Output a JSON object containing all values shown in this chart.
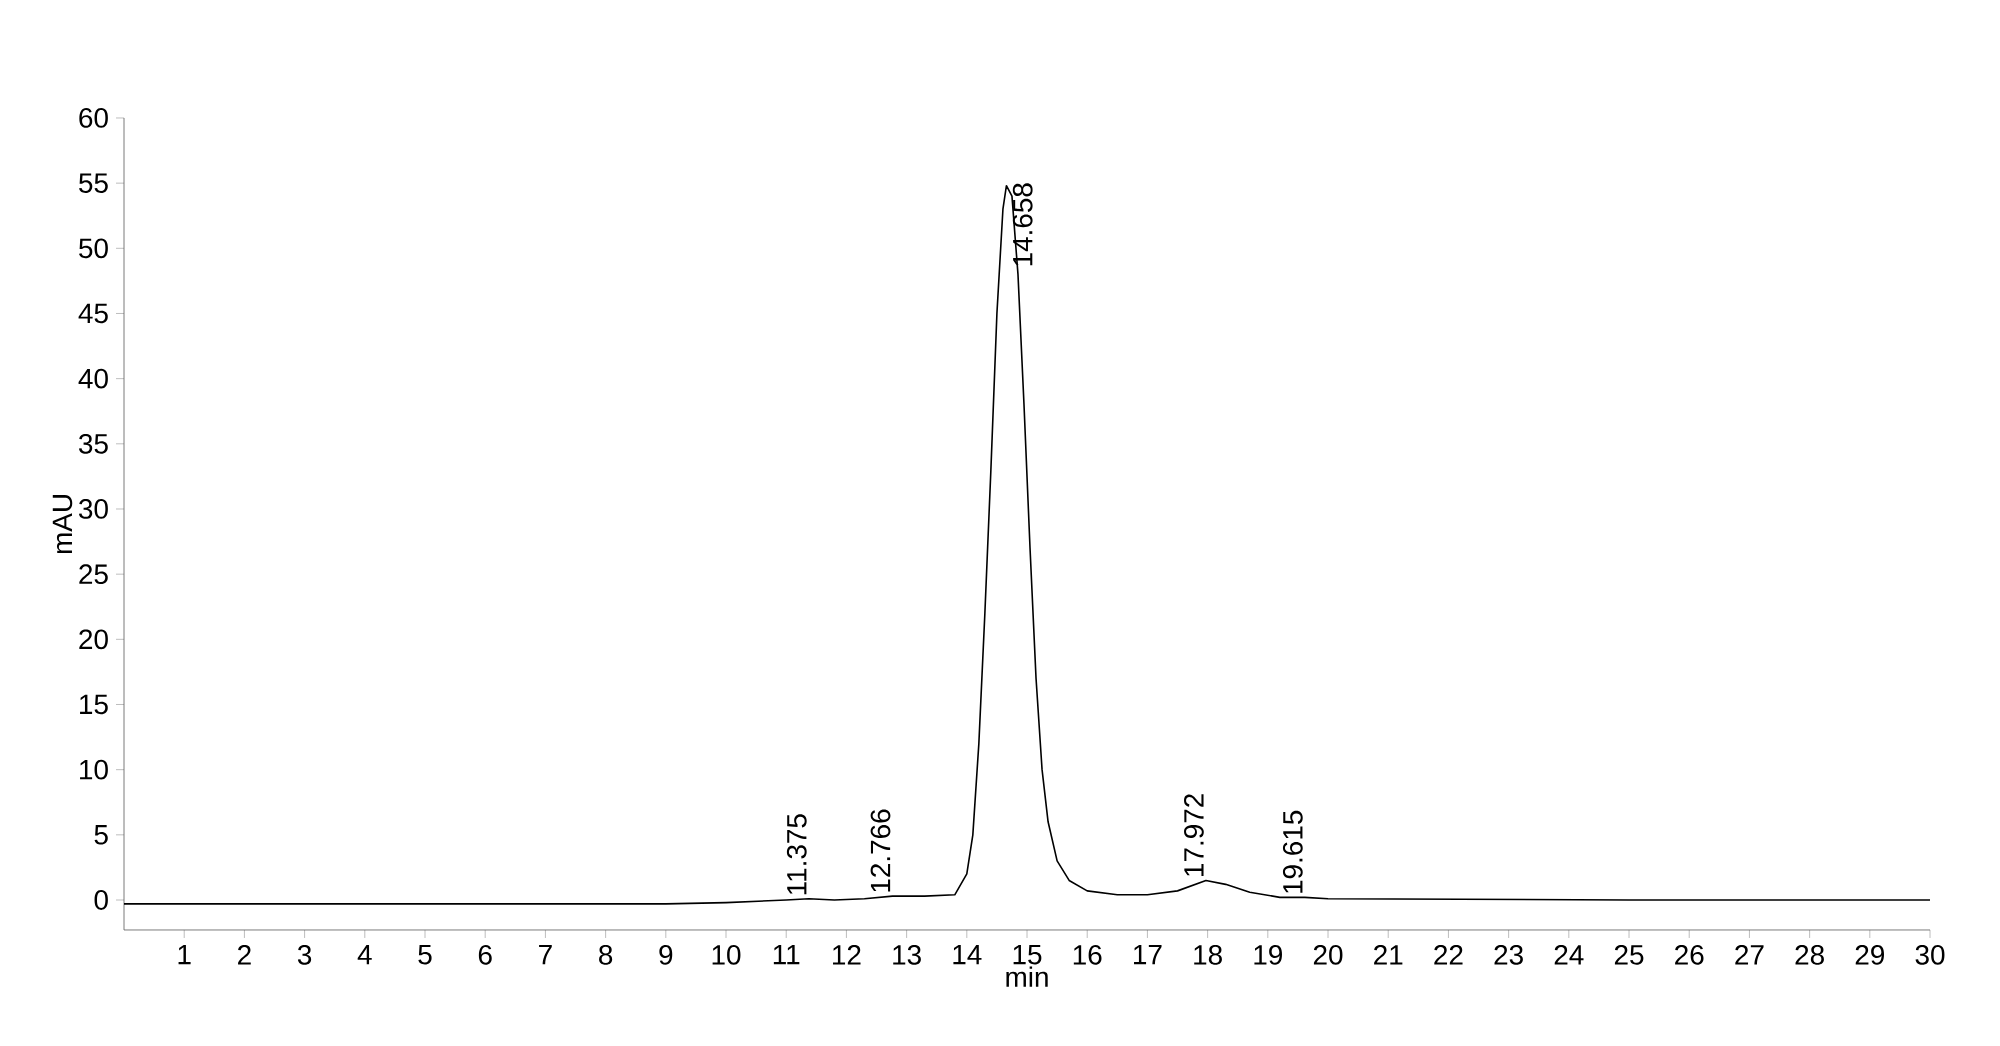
{
  "chart_data": {
    "type": "line",
    "xlabel": "min",
    "ylabel": "mAU",
    "x": [
      0,
      5,
      9,
      10,
      10.5,
      11,
      11.375,
      11.8,
      12.3,
      12.766,
      13.3,
      13.8,
      14.0,
      14.1,
      14.2,
      14.3,
      14.4,
      14.5,
      14.6,
      14.658,
      14.75,
      14.85,
      14.95,
      15.05,
      15.15,
      15.25,
      15.35,
      15.5,
      15.7,
      16.0,
      16.5,
      17.0,
      17.5,
      17.972,
      18.3,
      18.7,
      19.2,
      19.615,
      20,
      25,
      30
    ],
    "series": [
      {
        "color": "#000000",
        "values": [
          -0.3,
          -0.3,
          -0.3,
          -0.2,
          -0.1,
          0,
          0.1,
          0,
          0.1,
          0.3,
          0.3,
          0.4,
          2,
          5,
          12,
          22,
          33,
          45,
          53,
          54.8,
          54,
          48,
          38,
          27,
          17,
          10,
          6,
          3,
          1.5,
          0.7,
          0.4,
          0.4,
          0.7,
          1.5,
          1.2,
          0.6,
          0.2,
          0.2,
          0.1,
          0,
          0
        ]
      }
    ],
    "xlim": [
      0,
      30
    ],
    "ylim": [
      -2.3,
      60
    ],
    "xticks": [
      1,
      2,
      3,
      4,
      5,
      6,
      7,
      8,
      9,
      10,
      11,
      12,
      13,
      14,
      15,
      16,
      17,
      18,
      19,
      20,
      21,
      22,
      23,
      24,
      25,
      26,
      27,
      28,
      29,
      30
    ],
    "yticks": [
      0,
      5,
      10,
      15,
      20,
      25,
      30,
      35,
      40,
      45,
      50,
      55,
      60
    ],
    "grid": false,
    "marker": "none",
    "line_style": "solid",
    "annotations": [
      {
        "text": "11.375",
        "x": 11.375,
        "y": 0.1
      },
      {
        "text": "12.766",
        "x": 12.766,
        "y": 0.3
      },
      {
        "text": "14.658",
        "x": 14.658,
        "y": 54.8
      },
      {
        "text": "17.972",
        "x": 17.972,
        "y": 1.5
      },
      {
        "text": "19.615",
        "x": 19.615,
        "y": 0.2
      }
    ]
  }
}
